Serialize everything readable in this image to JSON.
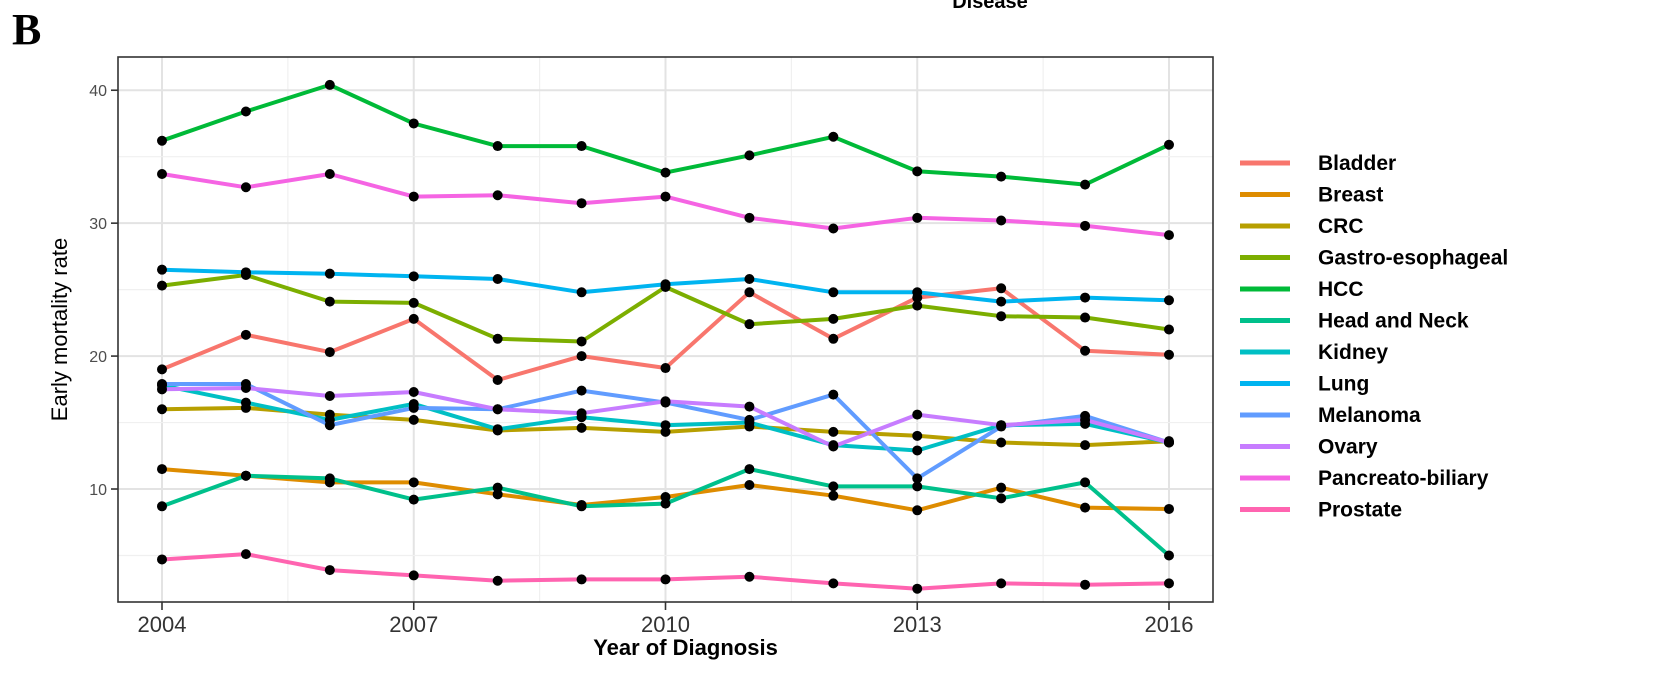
{
  "panel_label": "B",
  "top_text": "Disease",
  "chart_data": {
    "type": "line",
    "title": "",
    "xlabel": "Year of Diagnosis",
    "ylabel": "Early mortality rate",
    "xlim": [
      2004,
      2016
    ],
    "ylim": [
      1.5,
      42.5
    ],
    "x_ticks": [
      2004,
      2007,
      2010,
      2013,
      2016
    ],
    "y_ticks": [
      10,
      20,
      30,
      40
    ],
    "grid": true,
    "legend_title": "Disease",
    "legend_position": "right",
    "x": [
      2004,
      2005,
      2006,
      2007,
      2008,
      2009,
      2010,
      2011,
      2012,
      2013,
      2014,
      2015,
      2016
    ],
    "series": [
      {
        "name": "Bladder",
        "color": "#F8766D",
        "values": [
          19.0,
          21.6,
          20.3,
          22.8,
          18.2,
          20.0,
          19.1,
          24.8,
          21.3,
          24.4,
          25.1,
          20.4,
          20.1
        ]
      },
      {
        "name": "Breast",
        "color": "#DE8C00",
        "values": [
          11.5,
          11.0,
          10.5,
          10.5,
          9.6,
          8.8,
          9.4,
          10.3,
          9.5,
          8.4,
          10.1,
          8.6,
          8.5
        ]
      },
      {
        "name": "CRC",
        "color": "#B79F00",
        "values": [
          16.0,
          16.1,
          15.6,
          15.2,
          14.4,
          14.6,
          14.3,
          14.7,
          14.3,
          14.0,
          13.5,
          13.3,
          13.6
        ]
      },
      {
        "name": "Gastro-esophageal",
        "color": "#7CAE00",
        "values": [
          25.3,
          26.1,
          24.1,
          24.0,
          21.3,
          21.1,
          25.2,
          22.4,
          22.8,
          23.8,
          23.0,
          22.9,
          22.0
        ]
      },
      {
        "name": "HCC",
        "color": "#00BA38",
        "values": [
          36.2,
          38.4,
          40.4,
          37.5,
          35.8,
          35.8,
          33.8,
          35.1,
          36.5,
          33.9,
          33.5,
          32.9,
          35.9
        ]
      },
      {
        "name": "Head and Neck",
        "color": "#00C08B",
        "values": [
          8.7,
          11.0,
          10.8,
          9.2,
          10.1,
          8.7,
          8.9,
          11.5,
          10.2,
          10.2,
          9.3,
          10.5,
          5.0
        ]
      },
      {
        "name": "Kidney",
        "color": "#00BFC4",
        "values": [
          17.8,
          16.5,
          15.2,
          16.4,
          14.5,
          15.4,
          14.8,
          15.0,
          13.3,
          12.9,
          14.8,
          14.9,
          13.5
        ]
      },
      {
        "name": "Lung",
        "color": "#00B4F0",
        "values": [
          26.5,
          26.3,
          26.2,
          26.0,
          25.8,
          24.8,
          25.4,
          25.8,
          24.8,
          24.8,
          24.1,
          24.4,
          24.2
        ]
      },
      {
        "name": "Melanoma",
        "color": "#619CFF",
        "values": [
          17.9,
          17.9,
          14.8,
          16.1,
          16.0,
          17.4,
          16.5,
          15.2,
          17.1,
          10.8,
          14.7,
          15.5,
          13.5
        ]
      },
      {
        "name": "Ovary",
        "color": "#C77CFF",
        "values": [
          17.5,
          17.6,
          17.0,
          17.3,
          16.0,
          15.7,
          16.6,
          16.2,
          13.2,
          15.6,
          14.8,
          15.2,
          13.5
        ]
      },
      {
        "name": "Pancreato-biliary",
        "color": "#F564E3",
        "values": [
          33.7,
          32.7,
          33.7,
          32.0,
          32.1,
          31.5,
          32.0,
          30.4,
          29.6,
          30.4,
          30.2,
          29.8,
          29.1
        ]
      },
      {
        "name": "Prostate",
        "color": "#FF64B0",
        "values": [
          4.7,
          5.1,
          3.9,
          3.5,
          3.1,
          3.2,
          3.2,
          3.4,
          2.9,
          2.5,
          2.9,
          2.8,
          2.9
        ]
      }
    ]
  }
}
